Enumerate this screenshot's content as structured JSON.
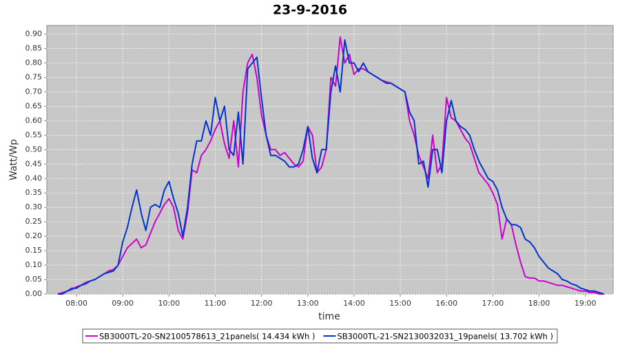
{
  "chart_data": {
    "type": "line",
    "title": "23-9-2016",
    "xlabel": "time",
    "ylabel": "Watt/Wp",
    "xlim": [
      7.36,
      19.6
    ],
    "ylim": [
      0,
      0.93
    ],
    "xticks": [
      {
        "value": 8,
        "label": "08:00"
      },
      {
        "value": 9,
        "label": "09:00"
      },
      {
        "value": 10,
        "label": "10:00"
      },
      {
        "value": 11,
        "label": "11:00"
      },
      {
        "value": 12,
        "label": "12:00"
      },
      {
        "value": 13,
        "label": "13:00"
      },
      {
        "value": 14,
        "label": "14:00"
      },
      {
        "value": 15,
        "label": "15:00"
      },
      {
        "value": 16,
        "label": "16:00"
      },
      {
        "value": 17,
        "label": "17:00"
      },
      {
        "value": 18,
        "label": "18:00"
      },
      {
        "value": 19,
        "label": "19:00"
      }
    ],
    "yticks": [
      {
        "value": 0,
        "label": "0.00"
      },
      0.05,
      {
        "value": 0.1,
        "label": "0.10"
      },
      0.15,
      {
        "value": 0.2,
        "label": "0.20"
      },
      0.25,
      {
        "value": 0.3,
        "label": "0.30"
      },
      0.35,
      {
        "value": 0.4,
        "label": "0.40"
      },
      0.45,
      {
        "value": 0.5,
        "label": "0.50"
      },
      0.55,
      {
        "value": 0.6,
        "label": "0.60"
      },
      0.65,
      {
        "value": 0.7,
        "label": "0.70"
      },
      0.75,
      {
        "value": 0.8,
        "label": "0.80"
      },
      0.85,
      {
        "value": 0.9,
        "label": "0.90"
      }
    ],
    "grid": true,
    "x": [
      7.6,
      7.7,
      7.8,
      7.9,
      8.0,
      8.1,
      8.2,
      8.3,
      8.4,
      8.5,
      8.6,
      8.7,
      8.8,
      8.9,
      9.0,
      9.1,
      9.2,
      9.3,
      9.4,
      9.5,
      9.6,
      9.7,
      9.8,
      9.9,
      10.0,
      10.1,
      10.2,
      10.3,
      10.4,
      10.5,
      10.6,
      10.7,
      10.8,
      10.9,
      11.0,
      11.1,
      11.2,
      11.3,
      11.4,
      11.5,
      11.6,
      11.7,
      11.8,
      11.9,
      12.0,
      12.1,
      12.2,
      12.3,
      12.4,
      12.5,
      12.6,
      12.7,
      12.8,
      12.9,
      13.0,
      13.1,
      13.2,
      13.3,
      13.4,
      13.5,
      13.6,
      13.7,
      13.8,
      13.9,
      14.0,
      14.1,
      14.2,
      14.3,
      14.4,
      14.5,
      14.6,
      14.7,
      14.8,
      14.9,
      15.0,
      15.1,
      15.2,
      15.3,
      15.4,
      15.5,
      15.6,
      15.7,
      15.8,
      15.9,
      16.0,
      16.1,
      16.2,
      16.3,
      16.4,
      16.5,
      16.6,
      16.7,
      16.8,
      16.9,
      17.0,
      17.1,
      17.2,
      17.3,
      17.4,
      17.5,
      17.6,
      17.7,
      17.8,
      17.9,
      18.0,
      18.1,
      18.2,
      18.3,
      18.4,
      18.5,
      18.6,
      18.7,
      18.8,
      18.9,
      19.0,
      19.1,
      19.2,
      19.3,
      19.4
    ],
    "series": [
      {
        "name": "SB3000TL-20-SN2100578613_21panels( 14.434 kWh )",
        "color": "#cc00cc",
        "values": [
          0,
          0.005,
          0.01,
          0.015,
          0.025,
          0.03,
          0.04,
          0.045,
          0.05,
          0.06,
          0.07,
          0.08,
          0.085,
          0.1,
          0.13,
          0.16,
          0.175,
          0.19,
          0.16,
          0.17,
          0.21,
          0.25,
          0.28,
          0.31,
          0.33,
          0.3,
          0.22,
          0.19,
          0.28,
          0.43,
          0.42,
          0.48,
          0.5,
          0.53,
          0.57,
          0.6,
          0.52,
          0.47,
          0.6,
          0.44,
          0.7,
          0.8,
          0.83,
          0.75,
          0.62,
          0.55,
          0.5,
          0.5,
          0.48,
          0.49,
          0.47,
          0.45,
          0.44,
          0.46,
          0.58,
          0.55,
          0.42,
          0.44,
          0.5,
          0.75,
          0.72,
          0.89,
          0.8,
          0.83,
          0.76,
          0.78,
          0.78,
          0.77,
          0.76,
          0.75,
          0.74,
          0.735,
          0.73,
          0.72,
          0.71,
          0.7,
          0.6,
          0.55,
          0.48,
          0.44,
          0.4,
          0.55,
          0.42,
          0.45,
          0.68,
          0.61,
          0.6,
          0.57,
          0.54,
          0.52,
          0.47,
          0.42,
          0.4,
          0.38,
          0.35,
          0.31,
          0.19,
          0.26,
          0.24,
          0.17,
          0.11,
          0.06,
          0.055,
          0.055,
          0.045,
          0.045,
          0.04,
          0.035,
          0.03,
          0.03,
          0.025,
          0.02,
          0.015,
          0.01,
          0.01,
          0.005,
          0.005,
          0,
          0
        ]
      },
      {
        "name": "SB3000TL-21-SN2130032031_19panels( 13.702 kWh )",
        "color": "#0033cc",
        "values": [
          0,
          0,
          0.01,
          0.02,
          0.02,
          0.03,
          0.035,
          0.045,
          0.05,
          0.06,
          0.07,
          0.075,
          0.08,
          0.1,
          0.18,
          0.23,
          0.3,
          0.36,
          0.28,
          0.22,
          0.3,
          0.31,
          0.3,
          0.36,
          0.39,
          0.33,
          0.28,
          0.2,
          0.3,
          0.45,
          0.53,
          0.53,
          0.6,
          0.55,
          0.68,
          0.6,
          0.65,
          0.5,
          0.48,
          0.63,
          0.45,
          0.78,
          0.8,
          0.82,
          0.68,
          0.55,
          0.48,
          0.48,
          0.47,
          0.46,
          0.44,
          0.44,
          0.45,
          0.5,
          0.58,
          0.47,
          0.42,
          0.5,
          0.5,
          0.7,
          0.79,
          0.7,
          0.88,
          0.8,
          0.8,
          0.77,
          0.8,
          0.77,
          0.76,
          0.75,
          0.74,
          0.73,
          0.73,
          0.72,
          0.71,
          0.7,
          0.63,
          0.6,
          0.45,
          0.46,
          0.37,
          0.5,
          0.5,
          0.42,
          0.6,
          0.67,
          0.6,
          0.58,
          0.57,
          0.55,
          0.5,
          0.46,
          0.43,
          0.4,
          0.39,
          0.36,
          0.3,
          0.26,
          0.24,
          0.24,
          0.23,
          0.19,
          0.18,
          0.16,
          0.13,
          0.11,
          0.09,
          0.08,
          0.07,
          0.05,
          0.045,
          0.035,
          0.03,
          0.02,
          0.015,
          0.01,
          0.01,
          0.005,
          0
        ]
      }
    ]
  }
}
